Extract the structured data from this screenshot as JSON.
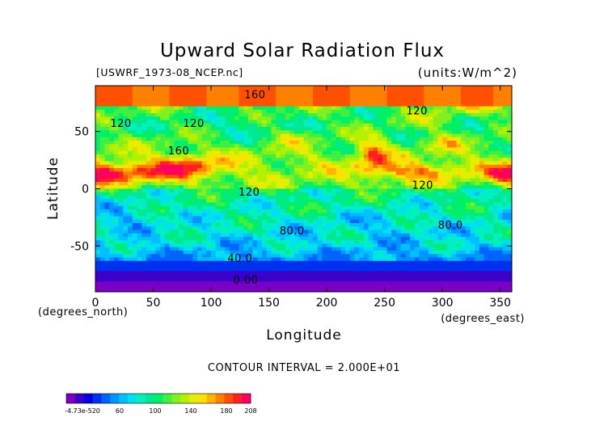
{
  "chart_data": {
    "type": "heatmap",
    "title": "Upward Solar Radiation Flux",
    "file_label": "[USWRF_1973-08_NCEP.nc]",
    "units_label": "(units:W/m^2)",
    "xlabel": "Longitude",
    "ylabel": "Latitude",
    "x_unit_label": "(degrees_east)",
    "y_unit_label": "(degrees_north)",
    "xlim": [
      0,
      360
    ],
    "ylim": [
      -90,
      90
    ],
    "x_ticks": [
      0,
      50,
      100,
      150,
      200,
      250,
      300,
      350
    ],
    "y_ticks": [
      50,
      0,
      -50
    ],
    "contour_interval_text": "CONTOUR INTERVAL = 2.000E+01",
    "contour_interval": 20,
    "contour_labels": [
      {
        "text": "160",
        "lon": 138,
        "lat": 79
      },
      {
        "text": "120",
        "lon": 22,
        "lat": 54
      },
      {
        "text": "120",
        "lon": 85,
        "lat": 54
      },
      {
        "text": "160",
        "lon": 72,
        "lat": 30
      },
      {
        "text": "120",
        "lon": 133,
        "lat": -6
      },
      {
        "text": "120",
        "lon": 278,
        "lat": 65
      },
      {
        "text": "120",
        "lon": 283,
        "lat": 0
      },
      {
        "text": "80.0",
        "lon": 170,
        "lat": -40
      },
      {
        "text": "80.0",
        "lon": 307,
        "lat": -35
      },
      {
        "text": "40.0",
        "lon": 125,
        "lat": -64
      },
      {
        "text": "0.00",
        "lon": 130,
        "lat": -83
      }
    ],
    "colorbar": {
      "tick_labels": [
        "-4.73e-520",
        "60",
        "100",
        "140",
        "180",
        "208"
      ],
      "tick_values": [
        -0.0,
        60,
        100,
        140,
        180,
        208
      ],
      "range": [
        0,
        208
      ],
      "colors": [
        "#7a00c8",
        "#3c00c8",
        "#0000e0",
        "#0030f0",
        "#0064ff",
        "#0096ff",
        "#00c0ff",
        "#00e0f0",
        "#00f0c0",
        "#00e890",
        "#00f064",
        "#40f040",
        "#80f020",
        "#b4f000",
        "#e0f000",
        "#ffe000",
        "#ffb400",
        "#ff8000",
        "#ff5000",
        "#ff2020",
        "#ff0060"
      ]
    },
    "grid": false,
    "legend": "bottom-left colorbar"
  }
}
